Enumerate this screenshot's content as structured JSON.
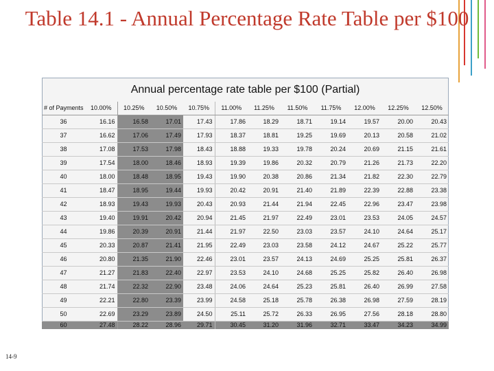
{
  "slide": {
    "title": "Table 14.1 - Annual Percentage Rate Table per $100",
    "page_number": "14-9"
  },
  "table": {
    "caption": "Annual percentage rate table per $100 (Partial)",
    "headers": [
      "# of Payments",
      "10.00%",
      "10.25%",
      "10.50%",
      "10.75%",
      "11.00%",
      "11.25%",
      "11.50%",
      "11.75%",
      "12.00%",
      "12.25%",
      "12.50%"
    ],
    "rows": [
      [
        "36",
        "16.16",
        "16.58",
        "17.01",
        "17.43",
        "17.86",
        "18.29",
        "18.71",
        "19.14",
        "19.57",
        "20.00",
        "20.43"
      ],
      [
        "37",
        "16.62",
        "17.06",
        "17.49",
        "17.93",
        "18.37",
        "18.81",
        "19.25",
        "19.69",
        "20.13",
        "20.58",
        "21.02"
      ],
      [
        "38",
        "17.08",
        "17.53",
        "17.98",
        "18.43",
        "18.88",
        "19.33",
        "19.78",
        "20.24",
        "20.69",
        "21.15",
        "21.61"
      ],
      [
        "39",
        "17.54",
        "18.00",
        "18.46",
        "18.93",
        "19.39",
        "19.86",
        "20.32",
        "20.79",
        "21.26",
        "21.73",
        "22.20"
      ],
      [
        "40",
        "18.00",
        "18.48",
        "18.95",
        "19.43",
        "19.90",
        "20.38",
        "20.86",
        "21.34",
        "21.82",
        "22.30",
        "22.79"
      ],
      [
        "41",
        "18.47",
        "18.95",
        "19.44",
        "19.93",
        "20.42",
        "20.91",
        "21.40",
        "21.89",
        "22.39",
        "22.88",
        "23.38"
      ],
      [
        "42",
        "18.93",
        "19.43",
        "19.93",
        "20.43",
        "20.93",
        "21.44",
        "21.94",
        "22.45",
        "22.96",
        "23.47",
        "23.98"
      ],
      [
        "43",
        "19.40",
        "19.91",
        "20.42",
        "20.94",
        "21.45",
        "21.97",
        "22.49",
        "23.01",
        "23.53",
        "24.05",
        "24.57"
      ],
      [
        "44",
        "19.86",
        "20.39",
        "20.91",
        "21.44",
        "21.97",
        "22.50",
        "23.03",
        "23.57",
        "24.10",
        "24.64",
        "25.17"
      ],
      [
        "45",
        "20.33",
        "20.87",
        "21.41",
        "21.95",
        "22.49",
        "23.03",
        "23.58",
        "24.12",
        "24.67",
        "25.22",
        "25.77"
      ],
      [
        "46",
        "20.80",
        "21.35",
        "21.90",
        "22.46",
        "23.01",
        "23.57",
        "24.13",
        "24.69",
        "25.25",
        "25.81",
        "26.37"
      ],
      [
        "47",
        "21.27",
        "21.83",
        "22.40",
        "22.97",
        "23.53",
        "24.10",
        "24.68",
        "25.25",
        "25.82",
        "26.40",
        "26.98"
      ],
      [
        "48",
        "21.74",
        "22.32",
        "22.90",
        "23.48",
        "24.06",
        "24.64",
        "25.23",
        "25.81",
        "26.40",
        "26.99",
        "27.58"
      ],
      [
        "49",
        "22.21",
        "22.80",
        "23.39",
        "23.99",
        "24.58",
        "25.18",
        "25.78",
        "26.38",
        "26.98",
        "27.59",
        "28.19"
      ],
      [
        "50",
        "22.69",
        "23.29",
        "23.89",
        "24.50",
        "25.11",
        "25.72",
        "26.33",
        "26.95",
        "27.56",
        "28.18",
        "28.80"
      ],
      [
        "60",
        "27.48",
        "28.22",
        "28.96",
        "29.71",
        "30.45",
        "31.20",
        "31.96",
        "32.71",
        "33.47",
        "34.23",
        "34.99"
      ]
    ],
    "highlight_columns": [
      2,
      3
    ],
    "highlight_color": "#8c8c8c"
  },
  "colors": {
    "title": "#c0392b",
    "deco_lines": [
      "#e8a23a",
      "#d7372f",
      "#3aa0c8",
      "#6dbb3a",
      "#e05a8a"
    ]
  }
}
